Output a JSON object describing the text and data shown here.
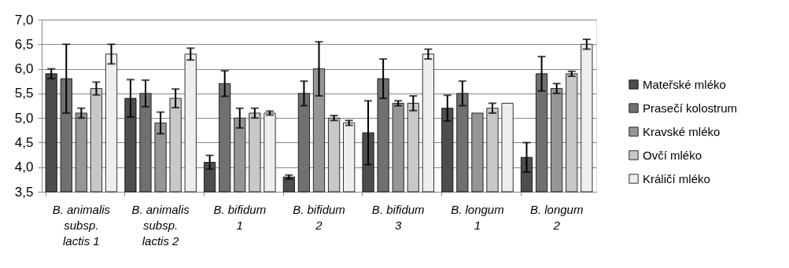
{
  "chart_data": {
    "type": "bar",
    "categories": [
      "B. animalis subsp. lactis 1",
      "B. animalis subsp. lactis 2",
      "B. bifidum 1",
      "B. bifidum 2",
      "B. bifidum 3",
      "B. longum 1",
      "B. longum 2"
    ],
    "series": [
      {
        "name": "Mateřské mléko",
        "color": "#4d4d4d",
        "values": [
          5.9,
          5.4,
          4.1,
          3.8,
          4.7,
          5.2,
          4.2
        ],
        "errors": [
          0.1,
          0.38,
          0.14,
          0.04,
          0.65,
          0.26,
          0.3
        ]
      },
      {
        "name": "Prasečí kolostrum",
        "color": "#707070",
        "values": [
          5.8,
          5.5,
          5.7,
          5.5,
          5.8,
          5.5,
          5.9
        ],
        "errors": [
          0.7,
          0.27,
          0.26,
          0.25,
          0.4,
          0.25,
          0.35
        ]
      },
      {
        "name": "Kravské mléko",
        "color": "#969696",
        "values": [
          5.1,
          4.9,
          5.0,
          6.0,
          5.3,
          5.1,
          5.6
        ],
        "errors": [
          0.1,
          0.22,
          0.2,
          0.55,
          0.05,
          null,
          0.1
        ]
      },
      {
        "name": "Ovčí mléko",
        "color": "#c8c8c8",
        "values": [
          5.6,
          5.4,
          5.1,
          5.0,
          5.3,
          5.2,
          5.9
        ],
        "errors": [
          0.13,
          0.19,
          0.1,
          0.05,
          0.15,
          0.1,
          0.05
        ]
      },
      {
        "name": "Králičí mléko",
        "color": "#eeeeee",
        "values": [
          6.3,
          6.3,
          5.1,
          4.9,
          6.3,
          5.3,
          6.5
        ],
        "errors": [
          0.2,
          0.12,
          0.04,
          0.05,
          0.1,
          null,
          0.1
        ]
      }
    ],
    "ylim": [
      3.5,
      7.0
    ],
    "yticks": [
      {
        "value": 3.5,
        "label": "3,5"
      },
      {
        "value": 4.0,
        "label": "4,0"
      },
      {
        "value": 4.5,
        "label": "4,5"
      },
      {
        "value": 5.0,
        "label": "5,0"
      },
      {
        "value": 5.5,
        "label": "5,5"
      },
      {
        "value": 6.0,
        "label": "6,0"
      },
      {
        "value": 6.5,
        "label": "6,5"
      },
      {
        "value": 7.0,
        "label": "7,0"
      }
    ],
    "grid": "y",
    "legend": "right"
  }
}
